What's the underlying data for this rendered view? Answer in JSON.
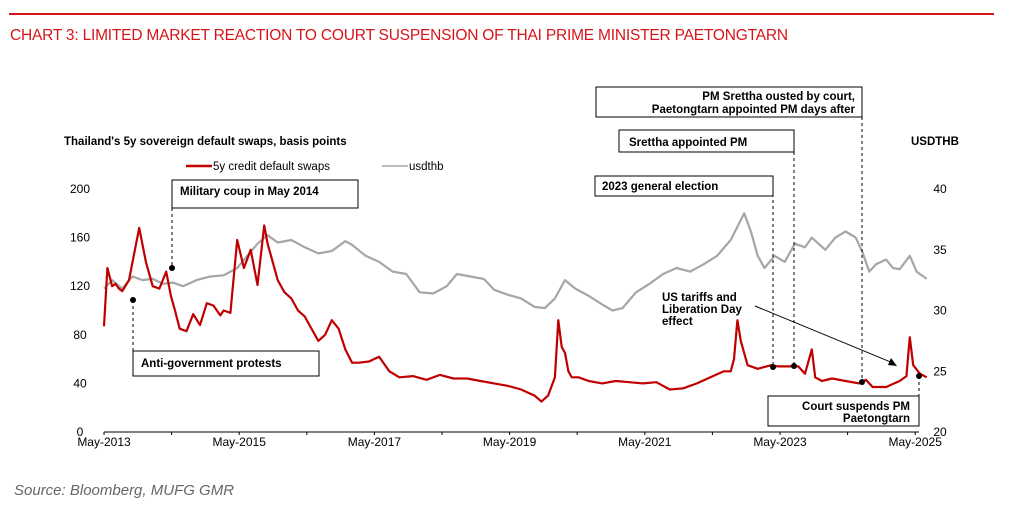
{
  "header": {
    "title": "CHART 3: LIMITED MARKET REACTION TO COURT SUSPENSION OF THAI PRIME MINISTER PAETONGTARN"
  },
  "footer": {
    "source": "Source: Bloomberg, MUFG GMR"
  },
  "colors": {
    "accent": "#d7141a",
    "cds": "#c00000",
    "usdthb": "#a6a6a6"
  },
  "chart_data": {
    "type": "line",
    "title": "CHART 3: LIMITED MARKET REACTION TO COURT SUSPENSION OF THAI PRIME MINISTER PAETONGTARN",
    "ylabel": "Thailand's 5y sovereign default swaps, basis points",
    "y2label": "USDTHB",
    "xlabel": "",
    "x_ticks": [
      "May-2013",
      "May-2015",
      "May-2017",
      "May-2019",
      "May-2021",
      "May-2023",
      "May-2025"
    ],
    "x_range": [
      2013.33,
      2025.5
    ],
    "ylim": [
      0,
      200
    ],
    "y_ticks": [
      "0",
      "40",
      "80",
      "120",
      "160",
      "200"
    ],
    "y2lim": [
      20,
      40
    ],
    "y2_ticks": [
      "20",
      "25",
      "30",
      "35",
      "40"
    ],
    "grid": false,
    "legend": {
      "placement": "top-center",
      "entries": [
        "5y credit default swaps",
        "usdthb"
      ]
    },
    "series": [
      {
        "name": "5y credit default swaps",
        "axis": "left",
        "x": [
          2013.33,
          2013.38,
          2013.45,
          2013.5,
          2013.55,
          2013.6,
          2013.7,
          2013.85,
          2013.95,
          2014.05,
          2014.15,
          2014.25,
          2014.32,
          2014.38,
          2014.45,
          2014.55,
          2014.65,
          2014.75,
          2014.85,
          2014.95,
          2015.05,
          2015.1,
          2015.2,
          2015.3,
          2015.4,
          2015.5,
          2015.6,
          2015.7,
          2015.75,
          2015.8,
          2015.9,
          2016.0,
          2016.1,
          2016.2,
          2016.3,
          2016.4,
          2016.5,
          2016.6,
          2016.7,
          2016.8,
          2016.9,
          2017.0,
          2017.1,
          2017.25,
          2017.4,
          2017.55,
          2017.7,
          2017.9,
          2018.1,
          2018.3,
          2018.5,
          2018.7,
          2018.9,
          2019.1,
          2019.3,
          2019.5,
          2019.7,
          2019.8,
          2019.9,
          2020.0,
          2020.05,
          2020.1,
          2020.15,
          2020.2,
          2020.25,
          2020.35,
          2020.5,
          2020.7,
          2020.9,
          2021.1,
          2021.3,
          2021.5,
          2021.7,
          2021.9,
          2022.1,
          2022.3,
          2022.5,
          2022.6,
          2022.65,
          2022.7,
          2022.75,
          2022.85,
          2023.0,
          2023.2,
          2023.3,
          2023.45,
          2023.6,
          2023.7,
          2023.8,
          2023.85,
          2023.95,
          2024.1,
          2024.3,
          2024.5,
          2024.6,
          2024.7,
          2024.9,
          2025.1,
          2025.2,
          2025.25,
          2025.3,
          2025.4,
          2025.5
        ],
        "y": [
          87,
          135,
          120,
          122,
          118,
          116,
          125,
          168,
          140,
          120,
          118,
          132,
          112,
          100,
          85,
          83,
          97,
          88,
          106,
          104,
          96,
          100,
          98,
          158,
          135,
          150,
          121,
          170,
          155,
          145,
          125,
          115,
          110,
          100,
          95,
          85,
          75,
          80,
          92,
          85,
          68,
          57,
          57,
          58,
          62,
          50,
          45,
          46,
          43,
          47,
          44,
          44,
          42,
          40,
          38,
          35,
          30,
          25,
          30,
          45,
          92,
          70,
          65,
          50,
          45,
          45,
          42,
          40,
          42,
          41,
          40,
          41,
          35,
          36,
          40,
          45,
          50,
          50,
          60,
          92,
          75,
          55,
          52,
          55,
          54,
          54,
          54,
          48,
          68,
          45,
          42,
          44,
          42,
          40,
          43,
          37,
          37,
          42,
          46,
          78,
          55,
          48,
          45
        ]
      },
      {
        "name": "usdthb",
        "axis": "right",
        "x": [
          2013.33,
          2013.45,
          2013.6,
          2013.75,
          2013.9,
          2014.05,
          2014.2,
          2014.35,
          2014.5,
          2014.7,
          2014.9,
          2015.1,
          2015.3,
          2015.45,
          2015.6,
          2015.75,
          2015.9,
          2016.1,
          2016.3,
          2016.5,
          2016.7,
          2016.9,
          2017.0,
          2017.2,
          2017.4,
          2017.6,
          2017.8,
          2018.0,
          2018.2,
          2018.4,
          2018.55,
          2018.75,
          2018.95,
          2019.1,
          2019.3,
          2019.5,
          2019.7,
          2019.85,
          2020.0,
          2020.15,
          2020.3,
          2020.5,
          2020.7,
          2020.85,
          2021.0,
          2021.2,
          2021.4,
          2021.6,
          2021.8,
          2022.0,
          2022.2,
          2022.4,
          2022.6,
          2022.8,
          2022.9,
          2023.0,
          2023.1,
          2023.25,
          2023.4,
          2023.55,
          2023.7,
          2023.8,
          2023.9,
          2024.0,
          2024.15,
          2024.3,
          2024.45,
          2024.55,
          2024.65,
          2024.75,
          2024.9,
          2025.0,
          2025.1,
          2025.25,
          2025.35,
          2025.5
        ],
        "y": [
          31.8,
          32.5,
          31.8,
          32.8,
          32.5,
          32.6,
          32.2,
          32.3,
          32.0,
          32.5,
          32.8,
          32.9,
          33.5,
          34.5,
          35.5,
          36.2,
          35.6,
          35.8,
          35.2,
          34.7,
          34.9,
          35.7,
          35.4,
          34.5,
          34.0,
          33.2,
          33.0,
          31.5,
          31.4,
          32.0,
          33.0,
          32.8,
          32.6,
          31.7,
          31.3,
          31.0,
          30.3,
          30.2,
          31.0,
          32.5,
          31.8,
          31.2,
          30.5,
          30.0,
          30.2,
          31.5,
          32.2,
          33.0,
          33.5,
          33.2,
          33.8,
          34.5,
          35.8,
          38.0,
          36.5,
          34.5,
          33.5,
          34.5,
          34.0,
          35.5,
          35.2,
          36.0,
          35.5,
          35.0,
          36.0,
          36.5,
          36.0,
          34.8,
          33.2,
          33.8,
          34.2,
          33.5,
          33.4,
          34.5,
          33.2,
          32.6
        ]
      }
    ],
    "annotations": [
      {
        "text": "Military coup in May 2014",
        "date": 2014.38
      },
      {
        "text": "Anti-government protests",
        "date": 2013.85
      },
      {
        "text": "2023 general election",
        "date": 2023.37
      },
      {
        "text": "Srettha appointed PM",
        "date": 2023.67
      },
      {
        "text": "PM Srettha ousted by court,",
        "text2": "Paetongtarn appointed PM days after",
        "date": 2024.62
      },
      {
        "text": "US tariffs and",
        "text2": "Liberation Day",
        "text3": "effect",
        "date": 2025.25
      },
      {
        "text": "Court suspends PM",
        "text2": "Paetongtarn",
        "date": 2025.5
      }
    ]
  }
}
